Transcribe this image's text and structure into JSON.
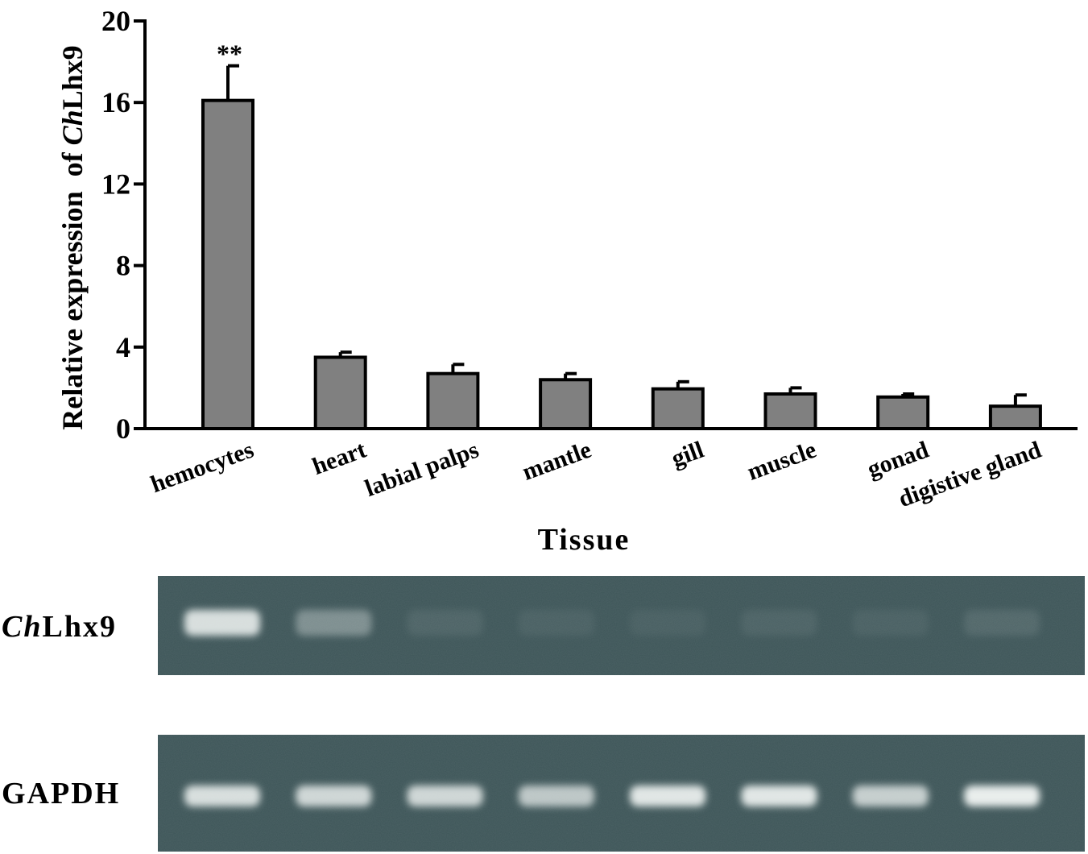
{
  "chart_data": {
    "type": "bar",
    "xlabel": "Tissue",
    "ylabel": {
      "prefix": "Relative expression  of ",
      "italic": "Ch",
      "suffix": "Lhx9"
    },
    "ylim": [
      0,
      20
    ],
    "yticks": [
      0,
      4,
      8,
      12,
      16,
      20
    ],
    "grid": false,
    "categories": [
      "hemocytes",
      "heart",
      "labial palps",
      "mantle",
      "gill",
      "muscle",
      "gonad",
      "digistive gland"
    ],
    "values": [
      16.1,
      3.5,
      2.7,
      2.4,
      1.95,
      1.7,
      1.55,
      1.1
    ],
    "errors": [
      1.7,
      0.25,
      0.45,
      0.3,
      0.35,
      0.3,
      0.15,
      0.55
    ],
    "annotations": [
      "**",
      "",
      "",
      "",
      "",
      "",
      "",
      ""
    ],
    "bar_color": "#808080"
  },
  "gels": [
    {
      "label_italic": "Ch",
      "label_rest": "Lhx9",
      "band_intensity": [
        0.85,
        0.35,
        0.08,
        0.06,
        0.05,
        0.07,
        0.06,
        0.1
      ]
    },
    {
      "label_italic": "",
      "label_rest": "GAPDH",
      "band_intensity": [
        0.85,
        0.8,
        0.8,
        0.7,
        0.9,
        0.9,
        0.75,
        0.95
      ]
    }
  ],
  "colors": {
    "gel_background": "#3d5558",
    "band": "#f2f6f4"
  }
}
